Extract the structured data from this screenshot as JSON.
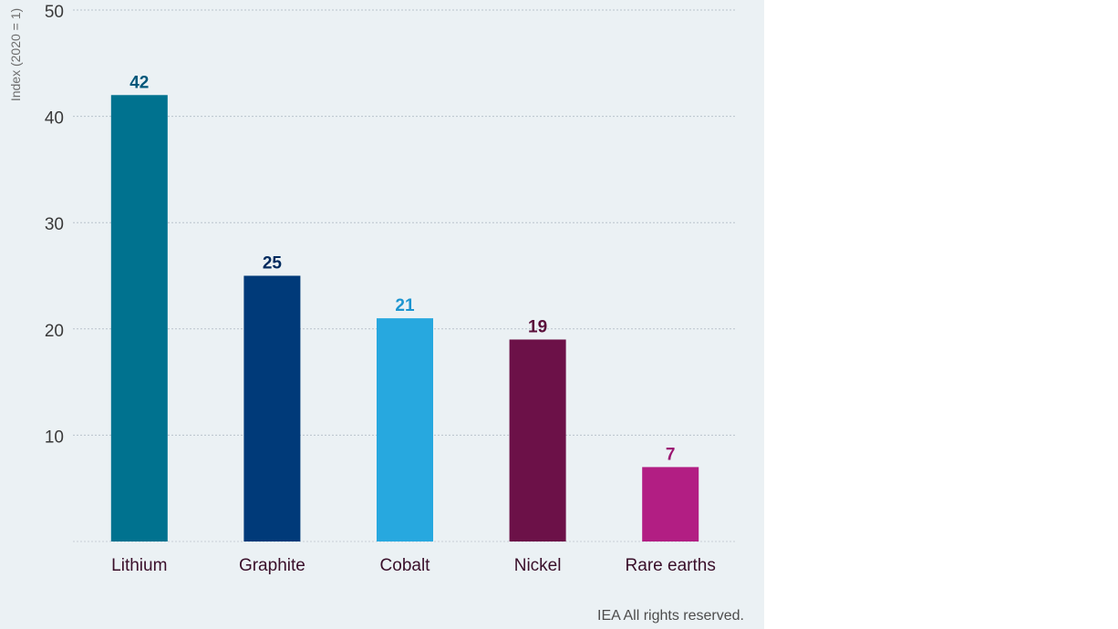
{
  "chart_data": {
    "type": "bar",
    "categories": [
      "Lithium",
      "Graphite",
      "Cobalt",
      "Nickel",
      "Rare earths"
    ],
    "values": [
      42,
      25,
      21,
      19,
      7
    ],
    "colors": [
      "#00728f",
      "#003a79",
      "#27a8df",
      "#6c1148",
      "#b21e83"
    ],
    "label_colors": [
      "#00577a",
      "#002a5e",
      "#1c95d0",
      "#5a0e3a",
      "#9c1772"
    ],
    "xlabel": "",
    "ylabel": "Index (2020 = 1)",
    "yticks": [
      10,
      20,
      30,
      40,
      50
    ],
    "ylim": [
      0,
      50
    ],
    "grid": true,
    "show_data_labels": true
  },
  "footer": {
    "credit": "IEA All rights reserved."
  }
}
